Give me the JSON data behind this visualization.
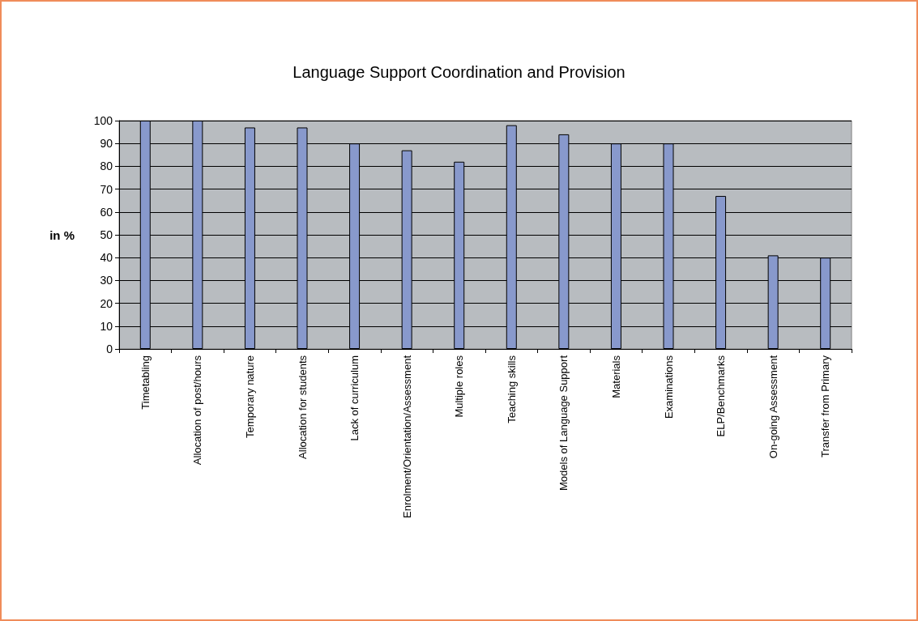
{
  "chart_data": {
    "type": "bar",
    "title": "Language Support Coordination and Provision",
    "ylabel": "in %",
    "categories": [
      "Timetabling",
      "Allocation of post/hours",
      "Temporary nature",
      "Allocation for students",
      "Lack of curriculum",
      "Enrolment/Orientation/Assessment",
      "Multiple roles",
      "Teaching skills",
      "Models of Language Support",
      "Materials",
      "Examinations",
      "ELP/Benchmarks",
      "On-going Assessment",
      "Transfer from Primary"
    ],
    "values": [
      100,
      100,
      97,
      97,
      90,
      87,
      82,
      98,
      94,
      90,
      90,
      67,
      41,
      40
    ],
    "color": "#8899cc",
    "ylim": [
      0,
      100
    ],
    "yticks": [
      0,
      10,
      20,
      30,
      40,
      50,
      60,
      70,
      80,
      90,
      100
    ],
    "grid": "y"
  }
}
